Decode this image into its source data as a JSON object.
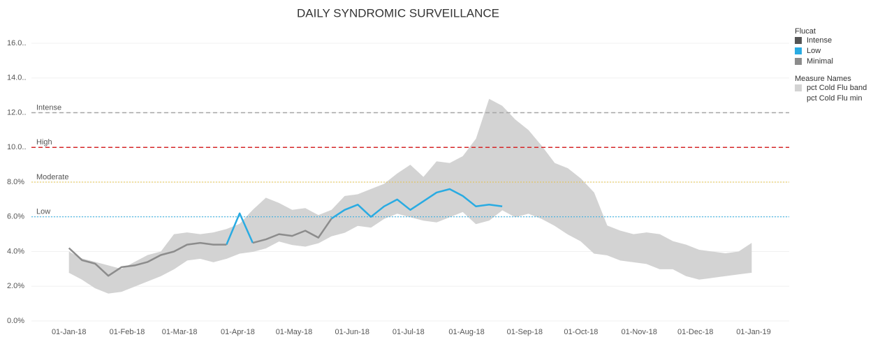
{
  "chart_data": {
    "type": "line",
    "title": "DAILY SYNDROMIC SURVEILLANCE",
    "x": [
      "2018-01-01",
      "2018-01-08",
      "2018-01-15",
      "2018-01-22",
      "2018-01-29",
      "2018-02-05",
      "2018-02-12",
      "2018-02-19",
      "2018-02-26",
      "2018-03-05",
      "2018-03-12",
      "2018-03-19",
      "2018-03-26",
      "2018-04-02",
      "2018-04-09",
      "2018-04-16",
      "2018-04-23",
      "2018-04-30",
      "2018-05-07",
      "2018-05-14",
      "2018-05-21",
      "2018-05-28",
      "2018-06-04",
      "2018-06-11",
      "2018-06-18",
      "2018-06-25",
      "2018-07-02",
      "2018-07-09",
      "2018-07-16",
      "2018-07-23",
      "2018-07-30",
      "2018-08-06",
      "2018-08-13",
      "2018-08-20",
      "2018-08-27",
      "2018-09-03",
      "2018-09-10",
      "2018-09-17",
      "2018-09-24",
      "2018-10-01",
      "2018-10-08",
      "2018-10-15",
      "2018-10-22",
      "2018-10-29",
      "2018-11-05",
      "2018-11-12",
      "2018-11-19",
      "2018-11-26",
      "2018-12-03",
      "2018-12-10",
      "2018-12-17",
      "2018-12-24",
      "2018-12-31"
    ],
    "xlim": [
      "2017-12-12",
      "2019-01-20"
    ],
    "xticks": [
      {
        "value": "2018-01-01",
        "label": "01-Jan-18"
      },
      {
        "value": "2018-02-01",
        "label": "01-Feb-18"
      },
      {
        "value": "2018-03-01",
        "label": "01-Mar-18"
      },
      {
        "value": "2018-04-01",
        "label": "01-Apr-18"
      },
      {
        "value": "2018-05-01",
        "label": "01-May-18"
      },
      {
        "value": "2018-06-01",
        "label": "01-Jun-18"
      },
      {
        "value": "2018-07-01",
        "label": "01-Jul-18"
      },
      {
        "value": "2018-08-01",
        "label": "01-Aug-18"
      },
      {
        "value": "2018-09-01",
        "label": "01-Sep-18"
      },
      {
        "value": "2018-10-01",
        "label": "01-Oct-18"
      },
      {
        "value": "2018-11-01",
        "label": "01-Nov-18"
      },
      {
        "value": "2018-12-01",
        "label": "01-Dec-18"
      },
      {
        "value": "2019-01-01",
        "label": "01-Jan-19"
      }
    ],
    "ylim": [
      0,
      16
    ],
    "yticks": [
      {
        "value": 0,
        "label": "0.0%"
      },
      {
        "value": 2,
        "label": "2.0%"
      },
      {
        "value": 4,
        "label": "4.0%"
      },
      {
        "value": 6,
        "label": "6.0%"
      },
      {
        "value": 8,
        "label": "8.0%"
      },
      {
        "value": 10,
        "label": "10.0.."
      },
      {
        "value": 12,
        "label": "12.0.."
      },
      {
        "value": 14,
        "label": "14.0.."
      },
      {
        "value": 16,
        "label": "16.0.."
      }
    ],
    "grid": true,
    "legend_title": "Flucat",
    "series": [
      {
        "name": "Intense",
        "color": "#555555",
        "values": [
          null,
          null,
          null,
          null,
          null,
          null,
          null,
          null,
          null,
          null,
          null,
          null,
          null,
          null,
          null,
          null,
          null,
          null,
          null,
          null,
          null,
          null,
          null,
          null,
          null,
          null,
          null,
          null,
          null,
          null,
          null,
          null,
          null,
          null,
          null,
          null,
          null,
          null,
          null,
          null,
          null,
          null,
          null,
          null,
          null,
          null,
          null,
          null,
          null,
          null,
          null,
          null,
          null
        ]
      },
      {
        "name": "Low",
        "color": "#29abe2",
        "values": [
          null,
          null,
          null,
          null,
          null,
          null,
          null,
          null,
          null,
          null,
          null,
          null,
          4.4,
          6.2,
          4.5,
          null,
          null,
          null,
          null,
          null,
          5.9,
          6.4,
          6.7,
          6.0,
          6.6,
          7.0,
          6.4,
          6.9,
          7.4,
          7.6,
          7.2,
          6.6,
          6.7,
          6.6,
          null,
          null,
          null,
          null,
          null,
          null,
          null,
          null,
          null,
          null,
          null,
          null,
          null,
          null,
          null,
          null,
          null,
          null,
          null
        ]
      },
      {
        "name": "Minimal",
        "color": "#8c8c8c",
        "values": [
          4.2,
          3.5,
          3.3,
          2.6,
          3.1,
          3.2,
          3.4,
          3.8,
          4.0,
          4.4,
          4.5,
          4.4,
          4.4,
          null,
          4.5,
          4.7,
          5.0,
          4.9,
          5.2,
          4.8,
          5.9,
          null,
          null,
          null,
          null,
          null,
          null,
          null,
          null,
          null,
          null,
          null,
          null,
          null,
          null,
          null,
          null,
          null,
          null,
          null,
          null,
          null,
          null,
          null,
          null,
          null,
          null,
          null,
          null,
          null,
          null,
          null,
          null
        ]
      }
    ],
    "band": {
      "legend_title": "Measure Names",
      "series": [
        {
          "name": "pct Cold Flu band",
          "color": "#d3d3d3",
          "values": [
            1.2,
            1.2,
            1.5,
            1.6,
            1.3,
            1.4,
            1.5,
            1.4,
            2.0,
            1.6,
            1.4,
            1.7,
            1.7,
            1.7,
            2.4,
            2.9,
            2.2,
            2.0,
            2.2,
            1.6,
            1.5,
            2.1,
            1.8,
            2.2,
            2.0,
            2.3,
            3.0,
            2.5,
            3.5,
            3.1,
            3.2,
            4.9,
            7.0,
            6.0,
            5.6,
            4.8,
            4.2,
            3.6,
            3.8,
            3.6,
            3.5,
            1.7,
            1.7,
            1.6,
            1.8,
            2.0,
            1.6,
            1.8,
            1.7,
            1.5,
            1.3,
            1.3,
            1.7
          ]
        },
        {
          "name": "pct Cold Flu min",
          "values": [
            2.8,
            2.4,
            1.9,
            1.6,
            1.7,
            2.0,
            2.3,
            2.6,
            3.0,
            3.5,
            3.6,
            3.4,
            3.6,
            3.9,
            4.0,
            4.2,
            4.6,
            4.4,
            4.3,
            4.5,
            4.9,
            5.1,
            5.5,
            5.4,
            5.9,
            6.2,
            6.0,
            5.8,
            5.7,
            6.0,
            6.3,
            5.6,
            5.8,
            6.4,
            6.0,
            6.2,
            5.9,
            5.5,
            5.0,
            4.6,
            3.9,
            3.8,
            3.5,
            3.4,
            3.3,
            3.0,
            3.0,
            2.6,
            2.4,
            2.5,
            2.6,
            2.7,
            2.8
          ]
        }
      ]
    },
    "reference_lines": [
      {
        "label": "Intense",
        "value": 12,
        "color": "#a6a6a6",
        "style": "dashed"
      },
      {
        "label": "High",
        "value": 10,
        "color": "#d62728",
        "style": "dashed"
      },
      {
        "label": "Moderate",
        "value": 8,
        "color": "#e3c04a",
        "style": "dotted"
      },
      {
        "label": "Low",
        "value": 6,
        "color": "#29abe2",
        "style": "dotted"
      }
    ]
  }
}
